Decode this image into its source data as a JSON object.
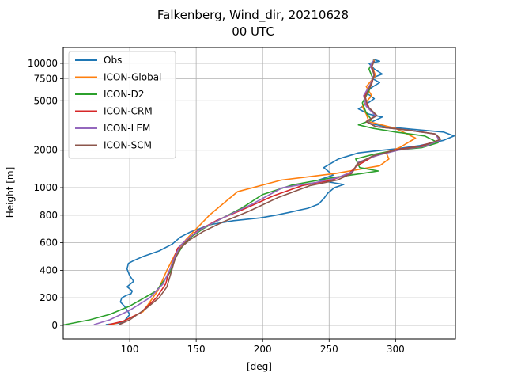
{
  "chart_data": {
    "type": "line",
    "title": "Falkenberg, Wind_dir, 20210628",
    "subtitle": "00 UTC",
    "xlabel": "[deg]",
    "ylabel": "Height [m]",
    "xlim": [
      50,
      345
    ],
    "x_ticks": [
      100,
      150,
      200,
      250,
      300
    ],
    "y_ticks": [
      0,
      200,
      400,
      600,
      800,
      1000,
      2000,
      5000,
      7500,
      10000
    ],
    "y_scale": "piecewise: linear 0-1000 m, logarithmic above 1000 m",
    "grid": true,
    "legend_position": "upper-left",
    "series": [
      {
        "name": "Obs",
        "color": "#1f77b4",
        "points": [
          [
            82,
            5
          ],
          [
            95,
            20
          ],
          [
            100,
            80
          ],
          [
            96,
            140
          ],
          [
            93,
            170
          ],
          [
            94,
            200
          ],
          [
            98,
            220
          ],
          [
            101,
            230
          ],
          [
            102,
            250
          ],
          [
            100,
            265
          ],
          [
            98,
            280
          ],
          [
            103,
            320
          ],
          [
            100,
            360
          ],
          [
            98,
            410
          ],
          [
            99,
            450
          ],
          [
            103,
            470
          ],
          [
            110,
            500
          ],
          [
            122,
            540
          ],
          [
            132,
            590
          ],
          [
            138,
            640
          ],
          [
            146,
            680
          ],
          [
            152,
            700
          ],
          [
            160,
            730
          ],
          [
            178,
            760
          ],
          [
            198,
            780
          ],
          [
            210,
            800
          ],
          [
            220,
            820
          ],
          [
            234,
            850
          ],
          [
            242,
            880
          ],
          [
            246,
            920
          ],
          [
            249,
            960
          ],
          [
            254,
            1000
          ],
          [
            261,
            1060
          ],
          [
            252,
            1100
          ],
          [
            242,
            1150
          ],
          [
            253,
            1260
          ],
          [
            246,
            1450
          ],
          [
            252,
            1580
          ],
          [
            257,
            1700
          ],
          [
            272,
            1900
          ],
          [
            286,
            1980
          ],
          [
            300,
            2050
          ],
          [
            318,
            2180
          ],
          [
            336,
            2400
          ],
          [
            344,
            2600
          ],
          [
            336,
            2800
          ],
          [
            312,
            2950
          ],
          [
            292,
            3100
          ],
          [
            280,
            3300
          ],
          [
            290,
            3700
          ],
          [
            280,
            3900
          ],
          [
            272,
            4300
          ],
          [
            278,
            4700
          ],
          [
            284,
            5200
          ],
          [
            278,
            5800
          ],
          [
            282,
            6400
          ],
          [
            288,
            7000
          ],
          [
            282,
            7600
          ],
          [
            290,
            8200
          ],
          [
            284,
            9000
          ],
          [
            280,
            10000
          ],
          [
            288,
            10400
          ],
          [
            283,
            10800
          ]
        ]
      },
      {
        "name": "ICON-Global",
        "color": "#ff7f0e",
        "points": [
          [
            86,
            5
          ],
          [
            95,
            30
          ],
          [
            110,
            100
          ],
          [
            121,
            250
          ],
          [
            128,
            400
          ],
          [
            136,
            550
          ],
          [
            143,
            630
          ],
          [
            150,
            700
          ],
          [
            160,
            800
          ],
          [
            181,
            970
          ],
          [
            214,
            1150
          ],
          [
            255,
            1300
          ],
          [
            272,
            1400
          ],
          [
            288,
            1500
          ],
          [
            295,
            1700
          ],
          [
            293,
            1900
          ],
          [
            303,
            2100
          ],
          [
            315,
            2500
          ],
          [
            300,
            3000
          ],
          [
            280,
            3400
          ],
          [
            278,
            3900
          ],
          [
            275,
            4500
          ],
          [
            282,
            5500
          ],
          [
            278,
            6500
          ],
          [
            285,
            8000
          ],
          [
            282,
            9500
          ],
          [
            284,
            10700
          ]
        ]
      },
      {
        "name": "ICON-D2",
        "color": "#2ca02c",
        "points": [
          [
            50,
            3
          ],
          [
            70,
            40
          ],
          [
            85,
            80
          ],
          [
            100,
            140
          ],
          [
            120,
            250
          ],
          [
            130,
            380
          ],
          [
            135,
            500
          ],
          [
            140,
            580
          ],
          [
            146,
            640
          ],
          [
            155,
            700
          ],
          [
            168,
            770
          ],
          [
            184,
            850
          ],
          [
            200,
            950
          ],
          [
            222,
            1050
          ],
          [
            252,
            1200
          ],
          [
            275,
            1300
          ],
          [
            287,
            1360
          ],
          [
            273,
            1450
          ],
          [
            270,
            1700
          ],
          [
            283,
            1850
          ],
          [
            300,
            2000
          ],
          [
            320,
            2100
          ],
          [
            332,
            2300
          ],
          [
            322,
            2600
          ],
          [
            300,
            2800
          ],
          [
            283,
            3000
          ],
          [
            272,
            3200
          ],
          [
            282,
            3500
          ],
          [
            278,
            4000
          ],
          [
            275,
            4800
          ],
          [
            280,
            6000
          ],
          [
            283,
            7500
          ],
          [
            280,
            9000
          ],
          [
            283,
            10500
          ]
        ]
      },
      {
        "name": "ICON-CRM",
        "color": "#d62728",
        "points": [
          [
            84,
            5
          ],
          [
            95,
            30
          ],
          [
            108,
            90
          ],
          [
            120,
            200
          ],
          [
            127,
            300
          ],
          [
            130,
            400
          ],
          [
            133,
            480
          ],
          [
            136,
            560
          ],
          [
            142,
            610
          ],
          [
            150,
            680
          ],
          [
            165,
            760
          ],
          [
            185,
            840
          ],
          [
            208,
            940
          ],
          [
            230,
            1040
          ],
          [
            252,
            1150
          ],
          [
            265,
            1300
          ],
          [
            271,
            1500
          ],
          [
            282,
            1750
          ],
          [
            298,
            2000
          ],
          [
            318,
            2150
          ],
          [
            333,
            2400
          ],
          [
            330,
            2700
          ],
          [
            310,
            2900
          ],
          [
            285,
            3100
          ],
          [
            278,
            3400
          ],
          [
            285,
            3800
          ],
          [
            279,
            4500
          ],
          [
            277,
            5500
          ],
          [
            282,
            6800
          ],
          [
            284,
            8200
          ],
          [
            282,
            9500
          ],
          [
            284,
            10500
          ]
        ]
      },
      {
        "name": "ICON-LEM",
        "color": "#9467bd",
        "points": [
          [
            73,
            5
          ],
          [
            85,
            40
          ],
          [
            100,
            110
          ],
          [
            115,
            200
          ],
          [
            125,
            300
          ],
          [
            130,
            400
          ],
          [
            134,
            500
          ],
          [
            138,
            580
          ],
          [
            145,
            640
          ],
          [
            154,
            700
          ],
          [
            170,
            780
          ],
          [
            192,
            880
          ],
          [
            215,
            1000
          ],
          [
            240,
            1100
          ],
          [
            256,
            1200
          ],
          [
            268,
            1350
          ],
          [
            272,
            1600
          ],
          [
            285,
            1800
          ],
          [
            302,
            2000
          ],
          [
            322,
            2150
          ],
          [
            333,
            2400
          ],
          [
            330,
            2700
          ],
          [
            310,
            2900
          ],
          [
            285,
            3100
          ],
          [
            279,
            3400
          ],
          [
            285,
            3800
          ],
          [
            278,
            4500
          ],
          [
            276,
            5500
          ],
          [
            281,
            6800
          ],
          [
            284,
            8200
          ],
          [
            281,
            9500
          ],
          [
            283,
            10500
          ]
        ]
      },
      {
        "name": "ICON-SCM",
        "color": "#8c564b",
        "points": [
          [
            92,
            5
          ],
          [
            100,
            40
          ],
          [
            112,
            120
          ],
          [
            122,
            200
          ],
          [
            128,
            280
          ],
          [
            131,
            380
          ],
          [
            134,
            480
          ],
          [
            138,
            560
          ],
          [
            145,
            620
          ],
          [
            155,
            680
          ],
          [
            170,
            750
          ],
          [
            190,
            830
          ],
          [
            212,
            930
          ],
          [
            236,
            1040
          ],
          [
            256,
            1150
          ],
          [
            267,
            1300
          ],
          [
            271,
            1550
          ],
          [
            283,
            1800
          ],
          [
            300,
            2000
          ],
          [
            320,
            2150
          ],
          [
            334,
            2450
          ],
          [
            330,
            2700
          ],
          [
            310,
            2900
          ],
          [
            285,
            3100
          ],
          [
            278,
            3400
          ],
          [
            286,
            3800
          ],
          [
            280,
            4400
          ],
          [
            277,
            5300
          ],
          [
            281,
            6600
          ],
          [
            284,
            8000
          ],
          [
            282,
            9300
          ],
          [
            284,
            10500
          ]
        ]
      }
    ]
  }
}
